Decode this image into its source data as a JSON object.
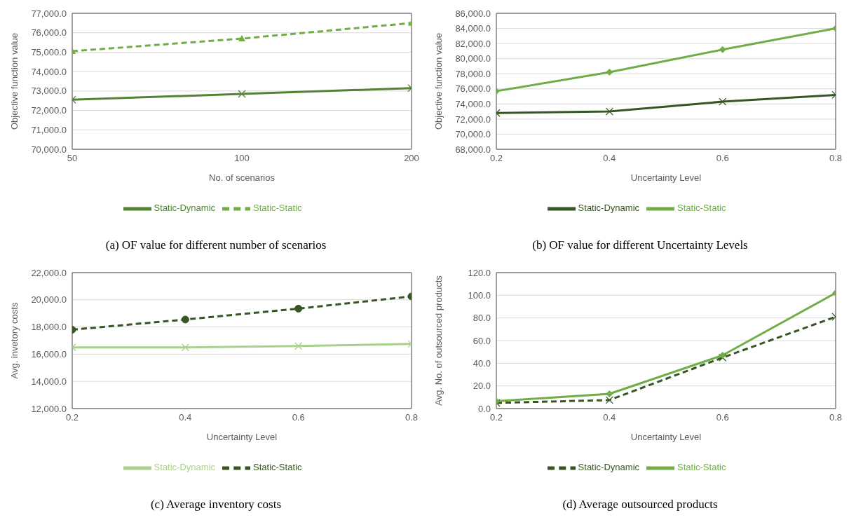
{
  "chart_data": [
    {
      "type": "line",
      "title": "(a) OF value for different number of scenarios",
      "xlabel": "No. of scenarios",
      "ylabel": "Objective function value",
      "categories": [
        "50",
        "100",
        "200"
      ],
      "ylim": [
        70000,
        77000
      ],
      "yticks": [
        {
          "value": 70000,
          "label": "70,000.0"
        },
        {
          "value": 71000,
          "label": "71,000.0"
        },
        {
          "value": 72000,
          "label": "72,000.0"
        },
        {
          "value": 73000,
          "label": "73,000.0"
        },
        {
          "value": 74000,
          "label": "74,000.0"
        },
        {
          "value": 75000,
          "label": "75,000.0"
        },
        {
          "value": 76000,
          "label": "76,000.0"
        },
        {
          "value": 77000,
          "label": "77,000.0"
        }
      ],
      "grid": "y",
      "legend": "bottom",
      "series": [
        {
          "name": "Static-Dynamic",
          "color": "#548235",
          "marker": "cross",
          "line_style": "solid",
          "values": [
            72550,
            72850,
            73150
          ]
        },
        {
          "name": "Static-Static",
          "color": "#70ad47",
          "marker": "triangle",
          "line_style": "dashed",
          "values": [
            75050,
            75700,
            76500
          ]
        }
      ]
    },
    {
      "type": "line",
      "title": "(b) OF value for different Uncertainty Levels",
      "xlabel": "Uncertainty Level",
      "ylabel": "Objective function value",
      "x": [
        0.2,
        0.4,
        0.6,
        0.8
      ],
      "xlim": [
        0.2,
        0.8
      ],
      "xticks": [
        0.2,
        0.4,
        0.6,
        0.8
      ],
      "ylim": [
        68000,
        86000
      ],
      "yticks": [
        {
          "value": 68000,
          "label": "68,000.0"
        },
        {
          "value": 70000,
          "label": "70,000.0"
        },
        {
          "value": 72000,
          "label": "72,000.0"
        },
        {
          "value": 74000,
          "label": "74,000.0"
        },
        {
          "value": 76000,
          "label": "76,000.0"
        },
        {
          "value": 78000,
          "label": "78,000.0"
        },
        {
          "value": 80000,
          "label": "80,000.0"
        },
        {
          "value": 82000,
          "label": "82,000.0"
        },
        {
          "value": 84000,
          "label": "84,000.0"
        },
        {
          "value": 86000,
          "label": "86,000.0"
        }
      ],
      "grid": "y",
      "legend": "bottom",
      "series": [
        {
          "name": "Static-Dynamic",
          "color": "#375623",
          "marker": "cross",
          "line_style": "solid",
          "values": [
            72800,
            73000,
            74300,
            75200
          ]
        },
        {
          "name": "Static-Static",
          "color": "#70ad47",
          "marker": "diamond",
          "line_style": "solid",
          "values": [
            75700,
            78200,
            81200,
            84000
          ]
        }
      ]
    },
    {
      "type": "line",
      "title": "(c) Average inventory costs",
      "xlabel": "Uncertainty Level",
      "ylabel": "Avg. invetory costs",
      "x": [
        0.2,
        0.4,
        0.6,
        0.8
      ],
      "xlim": [
        0.2,
        0.8
      ],
      "xticks": [
        0.2,
        0.4,
        0.6,
        0.8
      ],
      "ylim": [
        12000,
        22000
      ],
      "yticks": [
        {
          "value": 12000,
          "label": "12,000.0"
        },
        {
          "value": 14000,
          "label": "14,000.0"
        },
        {
          "value": 16000,
          "label": "16,000.0"
        },
        {
          "value": 18000,
          "label": "18,000.0"
        },
        {
          "value": 20000,
          "label": "20,000.0"
        },
        {
          "value": 22000,
          "label": "22,000.0"
        }
      ],
      "grid": "y",
      "legend": "bottom",
      "series": [
        {
          "name": "Static-Dynamic",
          "color": "#a9d18e",
          "marker": "cross",
          "line_style": "solid",
          "values": [
            16500,
            16500,
            16600,
            16750
          ]
        },
        {
          "name": "Static-Static",
          "color": "#375623",
          "marker": "circle",
          "line_style": "dashed",
          "values": [
            17800,
            18550,
            19350,
            20250
          ]
        }
      ]
    },
    {
      "type": "line",
      "title": "(d) Average outsourced products",
      "xlabel": "Uncertainty Level",
      "ylabel": "Avg. No. of outsourced products",
      "x": [
        0.2,
        0.4,
        0.6,
        0.8
      ],
      "xlim": [
        0.2,
        0.8
      ],
      "xticks": [
        0.2,
        0.4,
        0.6,
        0.8
      ],
      "ylim": [
        0,
        120
      ],
      "yticks": [
        {
          "value": 0,
          "label": "0.0"
        },
        {
          "value": 20,
          "label": "20.0"
        },
        {
          "value": 40,
          "label": "40.0"
        },
        {
          "value": 60,
          "label": "60.0"
        },
        {
          "value": 80,
          "label": "80.0"
        },
        {
          "value": 100,
          "label": "100.0"
        },
        {
          "value": 120,
          "label": "120.0"
        }
      ],
      "grid": "y",
      "legend": "bottom",
      "series": [
        {
          "name": "Static-Dynamic",
          "color": "#375623",
          "marker": "cross",
          "line_style": "dashed",
          "values": [
            5,
            7.5,
            45,
            81
          ]
        },
        {
          "name": "Static-Static",
          "color": "#70ad47",
          "marker": "diamond",
          "line_style": "solid",
          "values": [
            6.5,
            13,
            47,
            102
          ]
        }
      ]
    }
  ]
}
